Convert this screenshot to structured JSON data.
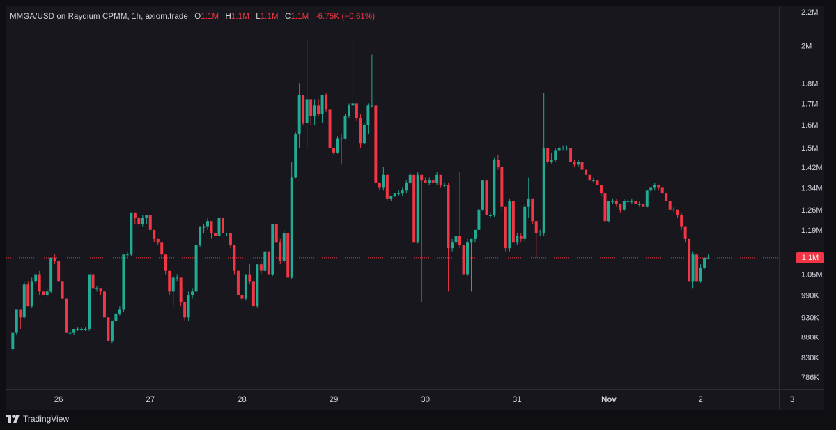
{
  "legend": {
    "symbol": "MMGA/USD on Raydium CPMM, 1h, axiom.trade",
    "open_label": "O",
    "open": "1.1M",
    "high_label": "H",
    "high": "1.1M",
    "low_label": "L",
    "low": "1.1M",
    "close_label": "C",
    "close": "1.1M",
    "change": "-6.75K (−0.61%)"
  },
  "price_tag": "1.1M",
  "branding": "TradingView",
  "colors": {
    "up": "#22ab94",
    "down": "#f23645",
    "background": "#0f0f13",
    "text": "#d1d4dc"
  },
  "chart_data": {
    "type": "candlestick",
    "scale": "log",
    "ylim": [
      760000,
      2240000
    ],
    "xlim": [
      -1.7,
      200.5
    ],
    "y_ticks": [
      {
        "value": 2200000,
        "label": "2.2M"
      },
      {
        "value": 2000000,
        "label": "2M"
      },
      {
        "value": 1800000,
        "label": "1.8M"
      },
      {
        "value": 1700000,
        "label": "1.7M"
      },
      {
        "value": 1600000,
        "label": "1.6M"
      },
      {
        "value": 1500000,
        "label": "1.5M"
      },
      {
        "value": 1420000,
        "label": "1.42M"
      },
      {
        "value": 1340000,
        "label": "1.34M"
      },
      {
        "value": 1260000,
        "label": "1.26M"
      },
      {
        "value": 1190000,
        "label": "1.19M"
      },
      {
        "value": 1050000,
        "label": "1.05M"
      },
      {
        "value": 990000,
        "label": "990K"
      },
      {
        "value": 930000,
        "label": "930K"
      },
      {
        "value": 880000,
        "label": "880K"
      },
      {
        "value": 830000,
        "label": "830K"
      },
      {
        "value": 786000,
        "label": "786K"
      }
    ],
    "x_ticks": [
      {
        "index": 12,
        "label": "26"
      },
      {
        "index": 36,
        "label": "27"
      },
      {
        "index": 60,
        "label": "28"
      },
      {
        "index": 84,
        "label": "29"
      },
      {
        "index": 108,
        "label": "30"
      },
      {
        "index": 132,
        "label": "31"
      },
      {
        "index": 156,
        "label": "Nov"
      },
      {
        "index": 180,
        "label": "2"
      },
      {
        "index": 204,
        "label": "3"
      }
    ],
    "last_price": 1100000,
    "candles": [
      [
        850000,
        890000,
        845000,
        890000
      ],
      [
        890000,
        950000,
        885000,
        950000
      ],
      [
        950000,
        950000,
        900000,
        930000
      ],
      [
        930000,
        1030000,
        925000,
        1020000
      ],
      [
        1020000,
        1030000,
        960000,
        960000
      ],
      [
        960000,
        1040000,
        955000,
        1030000
      ],
      [
        1030000,
        1050000,
        1020000,
        1050000
      ],
      [
        1050000,
        1060000,
        990000,
        1000000
      ],
      [
        1000000,
        1000000,
        990000,
        990000
      ],
      [
        990000,
        1010000,
        985000,
        1000000
      ],
      [
        1000000,
        1100000,
        995000,
        1100000
      ],
      [
        1100000,
        1110000,
        1080000,
        1090000
      ],
      [
        1090000,
        1090000,
        1030000,
        1030000
      ],
      [
        1030000,
        1030000,
        980000,
        980000
      ],
      [
        980000,
        980000,
        890000,
        890000
      ],
      [
        890000,
        900000,
        885000,
        890000
      ],
      [
        890000,
        900000,
        885000,
        900000
      ],
      [
        900000,
        905000,
        895000,
        900000
      ],
      [
        900000,
        905000,
        895000,
        900000
      ],
      [
        900000,
        905000,
        895000,
        900000
      ],
      [
        900000,
        1050000,
        895000,
        1050000
      ],
      [
        1050000,
        1050000,
        1000000,
        1010000
      ],
      [
        1010000,
        1015000,
        1000000,
        1010000
      ],
      [
        1010000,
        1010000,
        990000,
        1000000
      ],
      [
        1000000,
        1000000,
        930000,
        930000
      ],
      [
        930000,
        930000,
        870000,
        870000
      ],
      [
        870000,
        920000,
        865000,
        920000
      ],
      [
        920000,
        940000,
        915000,
        940000
      ],
      [
        940000,
        960000,
        935000,
        950000
      ],
      [
        950000,
        1110000,
        945000,
        1110000
      ],
      [
        1110000,
        1120000,
        1100000,
        1110000
      ],
      [
        1110000,
        1250000,
        1105000,
        1250000
      ],
      [
        1250000,
        1250000,
        1210000,
        1230000
      ],
      [
        1230000,
        1230000,
        1200000,
        1210000
      ],
      [
        1210000,
        1240000,
        1200000,
        1230000
      ],
      [
        1230000,
        1240000,
        1210000,
        1240000
      ],
      [
        1240000,
        1240000,
        1190000,
        1190000
      ],
      [
        1190000,
        1190000,
        1150000,
        1160000
      ],
      [
        1160000,
        1160000,
        1140000,
        1150000
      ],
      [
        1150000,
        1150000,
        1100000,
        1110000
      ],
      [
        1110000,
        1110000,
        1050000,
        1060000
      ],
      [
        1060000,
        1060000,
        990000,
        1000000
      ],
      [
        1000000,
        1050000,
        960000,
        1040000
      ],
      [
        1040000,
        1050000,
        1030000,
        1040000
      ],
      [
        1040000,
        1040000,
        960000,
        970000
      ],
      [
        970000,
        970000,
        920000,
        930000
      ],
      [
        930000,
        1000000,
        920000,
        990000
      ],
      [
        990000,
        1010000,
        980000,
        1000000
      ],
      [
        1000000,
        1140000,
        995000,
        1140000
      ],
      [
        1140000,
        1200000,
        1135000,
        1200000
      ],
      [
        1200000,
        1210000,
        1180000,
        1200000
      ],
      [
        1200000,
        1230000,
        1190000,
        1220000
      ],
      [
        1220000,
        1220000,
        1160000,
        1180000
      ],
      [
        1180000,
        1180000,
        1170000,
        1170000
      ],
      [
        1170000,
        1240000,
        1165000,
        1230000
      ],
      [
        1230000,
        1230000,
        1180000,
        1180000
      ],
      [
        1180000,
        1180000,
        1170000,
        1180000
      ],
      [
        1180000,
        1180000,
        1130000,
        1140000
      ],
      [
        1140000,
        1140000,
        1050000,
        1060000
      ],
      [
        1060000,
        1060000,
        990000,
        990000
      ],
      [
        990000,
        990000,
        970000,
        980000
      ],
      [
        980000,
        1050000,
        975000,
        1050000
      ],
      [
        1050000,
        1080000,
        1020000,
        1030000
      ],
      [
        1030000,
        1030000,
        960000,
        960000
      ],
      [
        960000,
        1080000,
        955000,
        1080000
      ],
      [
        1080000,
        1090000,
        1050000,
        1060000
      ],
      [
        1060000,
        1120000,
        1055000,
        1120000
      ],
      [
        1120000,
        1120000,
        1050000,
        1050000
      ],
      [
        1050000,
        1210000,
        1045000,
        1210000
      ],
      [
        1210000,
        1210000,
        1150000,
        1150000
      ],
      [
        1150000,
        1160000,
        1080000,
        1090000
      ],
      [
        1090000,
        1190000,
        1085000,
        1180000
      ],
      [
        1180000,
        1180000,
        1040000,
        1040000
      ],
      [
        1040000,
        1440000,
        1035000,
        1380000
      ],
      [
        1380000,
        1570000,
        1375000,
        1560000
      ],
      [
        1560000,
        1800000,
        1500000,
        1740000
      ],
      [
        1740000,
        1740000,
        1600000,
        1610000
      ],
      [
        1610000,
        2030000,
        1500000,
        1720000
      ],
      [
        1720000,
        1720000,
        1600000,
        1640000
      ],
      [
        1640000,
        1720000,
        1600000,
        1690000
      ],
      [
        1690000,
        1720000,
        1640000,
        1650000
      ],
      [
        1650000,
        1740000,
        1610000,
        1740000
      ],
      [
        1740000,
        1750000,
        1660000,
        1670000
      ],
      [
        1670000,
        1670000,
        1490000,
        1500000
      ],
      [
        1500000,
        1500000,
        1470000,
        1480000
      ],
      [
        1480000,
        1550000,
        1475000,
        1540000
      ],
      [
        1540000,
        1560000,
        1430000,
        1540000
      ],
      [
        1540000,
        1650000,
        1535000,
        1640000
      ],
      [
        1640000,
        1700000,
        1630000,
        1690000
      ],
      [
        1690000,
        2040000,
        1660000,
        1700000
      ],
      [
        1700000,
        1700000,
        1620000,
        1630000
      ],
      [
        1630000,
        1650000,
        1500000,
        1520000
      ],
      [
        1520000,
        1610000,
        1515000,
        1600000
      ],
      [
        1600000,
        1700000,
        1560000,
        1690000
      ],
      [
        1690000,
        1950000,
        1680000,
        1690000
      ],
      [
        1690000,
        1690000,
        1350000,
        1360000
      ],
      [
        1360000,
        1360000,
        1330000,
        1340000
      ],
      [
        1340000,
        1420000,
        1330000,
        1390000
      ],
      [
        1390000,
        1390000,
        1290000,
        1300000
      ],
      [
        1300000,
        1310000,
        1290000,
        1310000
      ],
      [
        1310000,
        1320000,
        1305000,
        1320000
      ],
      [
        1320000,
        1330000,
        1310000,
        1320000
      ],
      [
        1320000,
        1340000,
        1310000,
        1330000
      ],
      [
        1330000,
        1370000,
        1320000,
        1360000
      ],
      [
        1360000,
        1400000,
        1350000,
        1390000
      ],
      [
        1390000,
        1390000,
        1150000,
        1150000
      ],
      [
        1150000,
        1400000,
        1145000,
        1390000
      ],
      [
        1390000,
        1390000,
        970000,
        1370000
      ],
      [
        1370000,
        1380000,
        1360000,
        1360000
      ],
      [
        1360000,
        1380000,
        1350000,
        1370000
      ],
      [
        1370000,
        1380000,
        1360000,
        1360000
      ],
      [
        1360000,
        1400000,
        1350000,
        1390000
      ],
      [
        1390000,
        1390000,
        1340000,
        1350000
      ],
      [
        1350000,
        1360000,
        1340000,
        1350000
      ],
      [
        1350000,
        1360000,
        1000000,
        1130000
      ],
      [
        1130000,
        1160000,
        1120000,
        1150000
      ],
      [
        1150000,
        1170000,
        1140000,
        1170000
      ],
      [
        1170000,
        1400000,
        1130000,
        1140000
      ],
      [
        1140000,
        1140000,
        1050000,
        1050000
      ],
      [
        1050000,
        1160000,
        1045000,
        1150000
      ],
      [
        1150000,
        1160000,
        1000000,
        1160000
      ],
      [
        1160000,
        1190000,
        1150000,
        1190000
      ],
      [
        1190000,
        1270000,
        1185000,
        1260000
      ],
      [
        1260000,
        1370000,
        1255000,
        1370000
      ],
      [
        1370000,
        1370000,
        1240000,
        1240000
      ],
      [
        1240000,
        1250000,
        1230000,
        1240000
      ],
      [
        1240000,
        1460000,
        1235000,
        1450000
      ],
      [
        1450000,
        1470000,
        1410000,
        1420000
      ],
      [
        1420000,
        1420000,
        1250000,
        1270000
      ],
      [
        1270000,
        1270000,
        1120000,
        1130000
      ],
      [
        1130000,
        1300000,
        1120000,
        1290000
      ],
      [
        1290000,
        1290000,
        1150000,
        1150000
      ],
      [
        1150000,
        1180000,
        1140000,
        1170000
      ],
      [
        1170000,
        1180000,
        1150000,
        1160000
      ],
      [
        1160000,
        1280000,
        1150000,
        1270000
      ],
      [
        1270000,
        1380000,
        1230000,
        1300000
      ],
      [
        1300000,
        1300000,
        1210000,
        1220000
      ],
      [
        1220000,
        1220000,
        1100000,
        1180000
      ],
      [
        1180000,
        1190000,
        1170000,
        1180000
      ],
      [
        1180000,
        1750000,
        1170000,
        1500000
      ],
      [
        1500000,
        1500000,
        1430000,
        1440000
      ],
      [
        1440000,
        1480000,
        1435000,
        1450000
      ],
      [
        1450000,
        1500000,
        1440000,
        1490000
      ],
      [
        1490000,
        1510000,
        1480000,
        1500000
      ],
      [
        1500000,
        1510000,
        1490000,
        1500000
      ],
      [
        1500000,
        1510000,
        1490000,
        1500000
      ],
      [
        1500000,
        1500000,
        1440000,
        1440000
      ],
      [
        1440000,
        1450000,
        1420000,
        1430000
      ],
      [
        1430000,
        1450000,
        1420000,
        1440000
      ],
      [
        1440000,
        1440000,
        1410000,
        1410000
      ],
      [
        1410000,
        1410000,
        1390000,
        1390000
      ],
      [
        1390000,
        1390000,
        1370000,
        1370000
      ],
      [
        1370000,
        1380000,
        1360000,
        1370000
      ],
      [
        1370000,
        1370000,
        1350000,
        1350000
      ],
      [
        1350000,
        1350000,
        1310000,
        1320000
      ],
      [
        1320000,
        1320000,
        1200000,
        1220000
      ],
      [
        1220000,
        1290000,
        1215000,
        1290000
      ],
      [
        1290000,
        1300000,
        1280000,
        1290000
      ],
      [
        1290000,
        1300000,
        1270000,
        1280000
      ],
      [
        1280000,
        1280000,
        1250000,
        1260000
      ],
      [
        1260000,
        1300000,
        1255000,
        1290000
      ],
      [
        1290000,
        1300000,
        1280000,
        1290000
      ],
      [
        1290000,
        1300000,
        1280000,
        1290000
      ],
      [
        1290000,
        1290000,
        1280000,
        1280000
      ],
      [
        1280000,
        1290000,
        1270000,
        1280000
      ],
      [
        1280000,
        1280000,
        1270000,
        1270000
      ],
      [
        1270000,
        1330000,
        1265000,
        1330000
      ],
      [
        1330000,
        1340000,
        1320000,
        1340000
      ],
      [
        1340000,
        1360000,
        1330000,
        1350000
      ],
      [
        1350000,
        1350000,
        1330000,
        1340000
      ],
      [
        1340000,
        1340000,
        1320000,
        1320000
      ],
      [
        1320000,
        1320000,
        1290000,
        1290000
      ],
      [
        1290000,
        1290000,
        1260000,
        1260000
      ],
      [
        1260000,
        1270000,
        1250000,
        1260000
      ],
      [
        1260000,
        1260000,
        1230000,
        1240000
      ],
      [
        1240000,
        1250000,
        1190000,
        1200000
      ],
      [
        1200000,
        1200000,
        1150000,
        1160000
      ],
      [
        1160000,
        1160000,
        1030000,
        1030000
      ],
      [
        1030000,
        1120000,
        1010000,
        1110000
      ],
      [
        1110000,
        1110000,
        1030000,
        1030000
      ],
      [
        1030000,
        1080000,
        1025000,
        1070000
      ],
      [
        1070000,
        1100000,
        1065000,
        1100000
      ],
      [
        1100000,
        1110000,
        1095000,
        1100000
      ]
    ]
  }
}
